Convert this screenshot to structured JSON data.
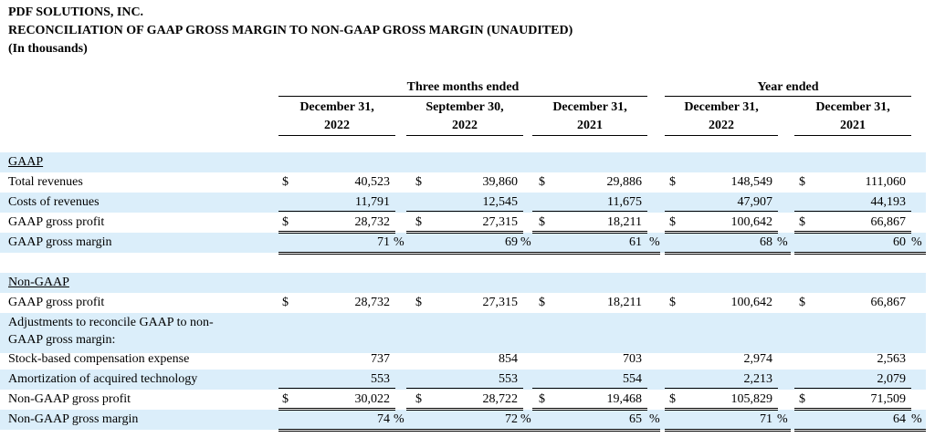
{
  "header": {
    "company": "PDF SOLUTIONS, INC.",
    "title": "RECONCILIATION OF GAAP GROSS MARGIN TO NON-GAAP GROSS MARGIN (UNAUDITED)",
    "units": "(In thousands)"
  },
  "column_groups": {
    "three_months": "Three months ended",
    "year": "Year ended"
  },
  "columns": [
    {
      "line1": "December 31,",
      "line2": "2022"
    },
    {
      "line1": "September 30,",
      "line2": "2022"
    },
    {
      "line1": "December 31,",
      "line2": "2021"
    },
    {
      "line1": "December 31,",
      "line2": "2022"
    },
    {
      "line1": "December 31,",
      "line2": "2021"
    }
  ],
  "sections": {
    "gaap": "GAAP",
    "non_gaap": "Non-GAAP"
  },
  "rows": {
    "total_revenues": {
      "label": "Total revenues",
      "dollar": "$",
      "values": [
        "40,523",
        "39,860",
        "29,886",
        "148,549",
        "111,060"
      ]
    },
    "costs_of_revenues": {
      "label": "Costs of revenues",
      "values": [
        "11,791",
        "12,545",
        "11,675",
        "47,907",
        "44,193"
      ]
    },
    "gaap_gross_profit": {
      "label": "GAAP gross profit",
      "dollar": "$",
      "values": [
        "28,732",
        "27,315",
        "18,211",
        "100,642",
        "66,867"
      ]
    },
    "gaap_gross_margin": {
      "label": "GAAP gross margin",
      "pct": "%",
      "values": [
        "71",
        "69",
        "61",
        "68",
        "60"
      ]
    },
    "ng_gaap_gross_profit": {
      "label": "GAAP gross profit",
      "dollar": "$",
      "values": [
        "28,732",
        "27,315",
        "18,211",
        "100,642",
        "66,867"
      ]
    },
    "adjustments": {
      "label1": "Adjustments to reconcile GAAP to non-",
      "label2": "GAAP gross margin:"
    },
    "stock_comp": {
      "label": "Stock-based compensation expense",
      "values": [
        "737",
        "854",
        "703",
        "2,974",
        "2,563"
      ]
    },
    "amortization": {
      "label": "Amortization of acquired technology",
      "values": [
        "553",
        "553",
        "554",
        "2,213",
        "2,079"
      ]
    },
    "non_gaap_gross_profit": {
      "label": "Non-GAAP gross profit",
      "dollar": "$",
      "values": [
        "30,022",
        "28,722",
        "19,468",
        "105,829",
        "71,509"
      ]
    },
    "non_gaap_gross_margin": {
      "label": "Non-GAAP gross margin",
      "pct": "%",
      "values": [
        "74",
        "72",
        "65",
        "71",
        "64"
      ]
    }
  }
}
